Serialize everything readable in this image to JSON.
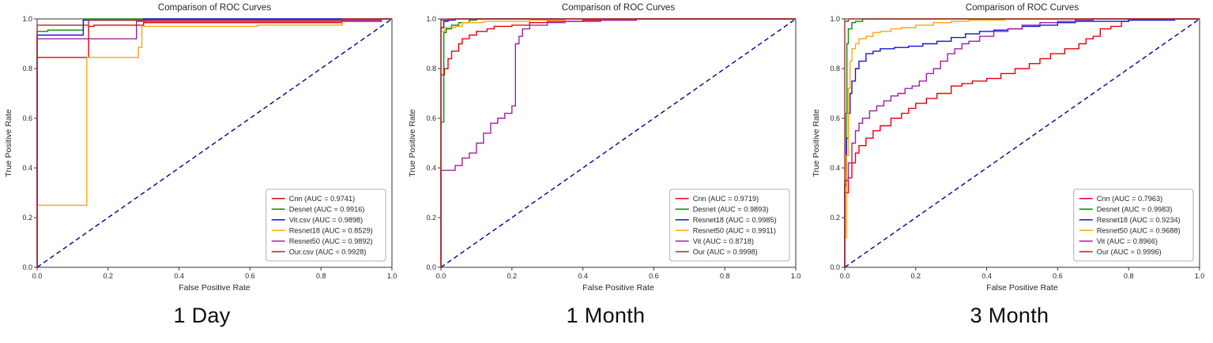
{
  "chart_data": [
    {
      "type": "line",
      "title": "Comparison of ROC Curves",
      "xlabel": "False Positive Rate",
      "ylabel": "True Positive Rate",
      "caption": "1 Day",
      "xlim": [
        0,
        1
      ],
      "ylim": [
        0,
        1
      ],
      "axis_ticks": [
        "0.0",
        "0.2",
        "0.4",
        "0.6",
        "0.8",
        "1.0"
      ],
      "grid": false,
      "legend_position": "lower right",
      "diagonal_color": "#00008b",
      "series": [
        {
          "name": "Cnn",
          "auc": 0.9741,
          "label": "Cnn (AUC = 0.9741)",
          "color": "#e8000e",
          "points": [
            [
              0,
              0
            ],
            [
              0,
              0.845
            ],
            [
              0.145,
              0.97
            ],
            [
              0.16,
              0.975
            ],
            [
              0.3,
              0.985
            ],
            [
              0.86,
              0.99
            ],
            [
              0.97,
              1.0
            ],
            [
              1,
              1
            ]
          ]
        },
        {
          "name": "Desnet",
          "auc": 0.9916,
          "label": "Desnet (AUC = 0.9916)",
          "color": "#0a8a0a",
          "points": [
            [
              0,
              0
            ],
            [
              0,
              0.95
            ],
            [
              0.03,
              0.955
            ],
            [
              0.13,
              1.0
            ],
            [
              1,
              1
            ]
          ]
        },
        {
          "name": "Vit.csv",
          "auc": 0.9898,
          "label": "Vit.csv (AUC = 0.9898)",
          "color": "#1414d4",
          "points": [
            [
              0,
              0
            ],
            [
              0,
              0.935
            ],
            [
              0.13,
              0.995
            ],
            [
              0.3,
              1.0
            ],
            [
              1,
              1
            ]
          ]
        },
        {
          "name": "Resnet18",
          "auc": 0.8529,
          "label": "Resnet18 (AUC = 0.8529)",
          "color": "#ffa510",
          "points": [
            [
              0,
              0
            ],
            [
              0,
              0.25
            ],
            [
              0.14,
              0.845
            ],
            [
              0.285,
              0.885
            ],
            [
              0.295,
              0.97
            ],
            [
              0.62,
              0.975
            ],
            [
              0.86,
              1.0
            ],
            [
              1,
              1
            ]
          ]
        },
        {
          "name": "Resnet50",
          "auc": 0.9892,
          "label": "Resnet50 (AUC = 0.9892)",
          "color": "#a020a0",
          "points": [
            [
              0,
              0
            ],
            [
              0,
              0.92
            ],
            [
              0.28,
              0.99
            ],
            [
              0.86,
              0.995
            ],
            [
              0.97,
              1.0
            ],
            [
              1,
              1
            ]
          ]
        },
        {
          "name": "Our.csv",
          "auc": 0.9928,
          "label": "Our.csv (AUC = 0.9928)",
          "color": "#a52a2a",
          "points": [
            [
              0,
              0
            ],
            [
              0,
              0.975
            ],
            [
              0.145,
              0.995
            ],
            [
              0.86,
              1.0
            ],
            [
              1,
              1
            ]
          ]
        }
      ]
    },
    {
      "type": "line",
      "title": "Comparison of ROC Curves",
      "xlabel": "False Positive Rate",
      "ylabel": "True Positive Rate",
      "caption": "1 Month",
      "xlim": [
        0,
        1
      ],
      "ylim": [
        0,
        1
      ],
      "axis_ticks": [
        "0.0",
        "0.2",
        "0.4",
        "0.6",
        "0.8",
        "1.0"
      ],
      "grid": false,
      "legend_position": "lower right",
      "diagonal_color": "#00008b",
      "series": [
        {
          "name": "Cnn",
          "auc": 0.9719,
          "label": "Cnn (AUC = 0.9719)",
          "color": "#e8000e",
          "points": [
            [
              0,
              0
            ],
            [
              0,
              0.775
            ],
            [
              0.01,
              0.8
            ],
            [
              0.02,
              0.84
            ],
            [
              0.03,
              0.87
            ],
            [
              0.05,
              0.9
            ],
            [
              0.06,
              0.92
            ],
            [
              0.08,
              0.935
            ],
            [
              0.1,
              0.95
            ],
            [
              0.13,
              0.96
            ],
            [
              0.15,
              0.97
            ],
            [
              0.2,
              0.975
            ],
            [
              0.25,
              0.985
            ],
            [
              0.3,
              0.99
            ],
            [
              0.4,
              0.995
            ],
            [
              0.55,
              1.0
            ],
            [
              1,
              1
            ]
          ]
        },
        {
          "name": "Desnet",
          "auc": 0.9893,
          "label": "Desnet (AUC = 0.9893)",
          "color": "#0a8a0a",
          "points": [
            [
              0,
              0
            ],
            [
              0,
              0.585
            ],
            [
              0.008,
              0.945
            ],
            [
              0.015,
              0.96
            ],
            [
              0.03,
              0.975
            ],
            [
              0.05,
              0.985
            ],
            [
              0.08,
              0.995
            ],
            [
              0.1,
              1.0
            ],
            [
              1,
              1
            ]
          ]
        },
        {
          "name": "Resnet18",
          "auc": 0.9985,
          "label": "Resnet18 (AUC = 0.9985)",
          "color": "#1414d4",
          "points": [
            [
              0,
              0
            ],
            [
              0,
              0.965
            ],
            [
              0.008,
              0.99
            ],
            [
              0.02,
              0.995
            ],
            [
              0.04,
              1.0
            ],
            [
              1,
              1
            ]
          ]
        },
        {
          "name": "Resnet50",
          "auc": 0.9911,
          "label": "Resnet50 (AUC = 0.9911)",
          "color": "#ffa510",
          "points": [
            [
              0,
              0
            ],
            [
              0,
              0.95
            ],
            [
              0.01,
              0.965
            ],
            [
              0.04,
              0.97
            ],
            [
              0.06,
              0.985
            ],
            [
              0.12,
              0.99
            ],
            [
              0.25,
              0.995
            ],
            [
              0.35,
              1.0
            ],
            [
              1,
              1
            ]
          ]
        },
        {
          "name": "Vit",
          "auc": 0.8718,
          "label": "Vit (AUC = 0.8718)",
          "color": "#a020a0",
          "points": [
            [
              0,
              0
            ],
            [
              0,
              0.39
            ],
            [
              0.04,
              0.41
            ],
            [
              0.06,
              0.44
            ],
            [
              0.08,
              0.46
            ],
            [
              0.1,
              0.5
            ],
            [
              0.12,
              0.54
            ],
            [
              0.14,
              0.58
            ],
            [
              0.16,
              0.6
            ],
            [
              0.18,
              0.62
            ],
            [
              0.2,
              0.65
            ],
            [
              0.21,
              0.9
            ],
            [
              0.22,
              0.93
            ],
            [
              0.23,
              0.96
            ],
            [
              0.25,
              0.975
            ],
            [
              0.3,
              0.985
            ],
            [
              0.35,
              0.99
            ],
            [
              0.45,
              0.995
            ],
            [
              0.55,
              1.0
            ],
            [
              1,
              1
            ]
          ]
        },
        {
          "name": "Our",
          "auc": 0.9998,
          "label": "Our (AUC = 0.9998)",
          "color": "#a52a2a",
          "points": [
            [
              0,
              0
            ],
            [
              0,
              0.995
            ],
            [
              0.02,
              1.0
            ],
            [
              1,
              1
            ]
          ]
        }
      ]
    },
    {
      "type": "line",
      "title": "Comparison of ROC Curves",
      "xlabel": "False Positive Rate",
      "ylabel": "True Positive Rate",
      "caption": "3 Month",
      "xlim": [
        0,
        1
      ],
      "ylim": [
        0,
        1
      ],
      "axis_ticks": [
        "0.0",
        "0.2",
        "0.4",
        "0.6",
        "0.8",
        "1.0"
      ],
      "grid": false,
      "legend_position": "lower right",
      "diagonal_color": "#00008b",
      "series": [
        {
          "name": "Cnn",
          "auc": 0.7963,
          "label": "Cnn (AUC = 0.7963)",
          "color": "#e8000e",
          "points": [
            [
              0,
              0
            ],
            [
              0,
              0.3
            ],
            [
              0.01,
              0.36
            ],
            [
              0.02,
              0.42
            ],
            [
              0.03,
              0.46
            ],
            [
              0.04,
              0.49
            ],
            [
              0.06,
              0.52
            ],
            [
              0.08,
              0.55
            ],
            [
              0.1,
              0.57
            ],
            [
              0.13,
              0.6
            ],
            [
              0.16,
              0.62
            ],
            [
              0.18,
              0.64
            ],
            [
              0.2,
              0.66
            ],
            [
              0.23,
              0.68
            ],
            [
              0.26,
              0.7
            ],
            [
              0.3,
              0.73
            ],
            [
              0.33,
              0.74
            ],
            [
              0.36,
              0.75
            ],
            [
              0.4,
              0.76
            ],
            [
              0.44,
              0.78
            ],
            [
              0.48,
              0.8
            ],
            [
              0.52,
              0.82
            ],
            [
              0.55,
              0.84
            ],
            [
              0.58,
              0.86
            ],
            [
              0.62,
              0.88
            ],
            [
              0.66,
              0.9
            ],
            [
              0.68,
              0.92
            ],
            [
              0.7,
              0.93
            ],
            [
              0.72,
              0.96
            ],
            [
              0.75,
              0.97
            ],
            [
              0.78,
              0.99
            ],
            [
              0.8,
              1.0
            ],
            [
              1,
              1
            ]
          ]
        },
        {
          "name": "Desnet",
          "auc": 0.9983,
          "label": "Desnet (AUC = 0.9983)",
          "color": "#0a8a0a",
          "points": [
            [
              0,
              0
            ],
            [
              0,
              0.33
            ],
            [
              0.004,
              0.62
            ],
            [
              0.006,
              0.9
            ],
            [
              0.01,
              0.96
            ],
            [
              0.02,
              0.985
            ],
            [
              0.03,
              0.99
            ],
            [
              0.05,
              1.0
            ],
            [
              1,
              1
            ]
          ]
        },
        {
          "name": "Resnet18",
          "auc": 0.9234,
          "label": "Resnet18 (AUC = 0.9234)",
          "color": "#1414d4",
          "points": [
            [
              0,
              0
            ],
            [
              0,
              0.33
            ],
            [
              0.005,
              0.52
            ],
            [
              0.01,
              0.62
            ],
            [
              0.015,
              0.7
            ],
            [
              0.02,
              0.75
            ],
            [
              0.03,
              0.8
            ],
            [
              0.04,
              0.83
            ],
            [
              0.06,
              0.86
            ],
            [
              0.08,
              0.87
            ],
            [
              0.1,
              0.88
            ],
            [
              0.14,
              0.885
            ],
            [
              0.18,
              0.89
            ],
            [
              0.22,
              0.9
            ],
            [
              0.26,
              0.91
            ],
            [
              0.3,
              0.925
            ],
            [
              0.34,
              0.94
            ],
            [
              0.38,
              0.95
            ],
            [
              0.42,
              0.955
            ],
            [
              0.46,
              0.96
            ],
            [
              0.5,
              0.97
            ],
            [
              0.55,
              0.975
            ],
            [
              0.6,
              0.985
            ],
            [
              0.65,
              0.99
            ],
            [
              0.8,
              0.995
            ],
            [
              0.93,
              1.0
            ],
            [
              1,
              1
            ]
          ]
        },
        {
          "name": "Resnet50",
          "auc": 0.9688,
          "label": "Resnet50 (AUC = 0.9688)",
          "color": "#ffa510",
          "points": [
            [
              0,
              0
            ],
            [
              0,
              0.12
            ],
            [
              0.005,
              0.45
            ],
            [
              0.01,
              0.72
            ],
            [
              0.015,
              0.83
            ],
            [
              0.02,
              0.88
            ],
            [
              0.03,
              0.9
            ],
            [
              0.04,
              0.92
            ],
            [
              0.06,
              0.93
            ],
            [
              0.08,
              0.945
            ],
            [
              0.1,
              0.95
            ],
            [
              0.13,
              0.96
            ],
            [
              0.16,
              0.965
            ],
            [
              0.2,
              0.975
            ],
            [
              0.25,
              0.985
            ],
            [
              0.3,
              0.99
            ],
            [
              0.35,
              0.995
            ],
            [
              0.45,
              1.0
            ],
            [
              1,
              1
            ]
          ]
        },
        {
          "name": "Vit",
          "auc": 0.8966,
          "label": "Vit (AUC = 0.8966)",
          "color": "#a020a0",
          "points": [
            [
              0,
              0
            ],
            [
              0,
              0.35
            ],
            [
              0.01,
              0.42
            ],
            [
              0.02,
              0.5
            ],
            [
              0.03,
              0.55
            ],
            [
              0.04,
              0.58
            ],
            [
              0.05,
              0.6
            ],
            [
              0.07,
              0.63
            ],
            [
              0.09,
              0.65
            ],
            [
              0.11,
              0.67
            ],
            [
              0.13,
              0.69
            ],
            [
              0.15,
              0.7
            ],
            [
              0.17,
              0.72
            ],
            [
              0.19,
              0.73
            ],
            [
              0.21,
              0.75
            ],
            [
              0.23,
              0.78
            ],
            [
              0.25,
              0.8
            ],
            [
              0.27,
              0.83
            ],
            [
              0.29,
              0.86
            ],
            [
              0.31,
              0.88
            ],
            [
              0.33,
              0.9
            ],
            [
              0.35,
              0.91
            ],
            [
              0.38,
              0.93
            ],
            [
              0.42,
              0.95
            ],
            [
              0.46,
              0.96
            ],
            [
              0.5,
              0.975
            ],
            [
              0.55,
              0.985
            ],
            [
              0.6,
              0.99
            ],
            [
              0.65,
              0.995
            ],
            [
              0.7,
              1.0
            ],
            [
              1,
              1
            ]
          ]
        },
        {
          "name": "Our",
          "auc": 0.9996,
          "label": "Our (AUC = 0.9996)",
          "color": "#a52a2a",
          "points": [
            [
              0,
              0
            ],
            [
              0,
              0.99
            ],
            [
              0.01,
              1.0
            ],
            [
              1,
              1
            ]
          ]
        }
      ]
    }
  ]
}
